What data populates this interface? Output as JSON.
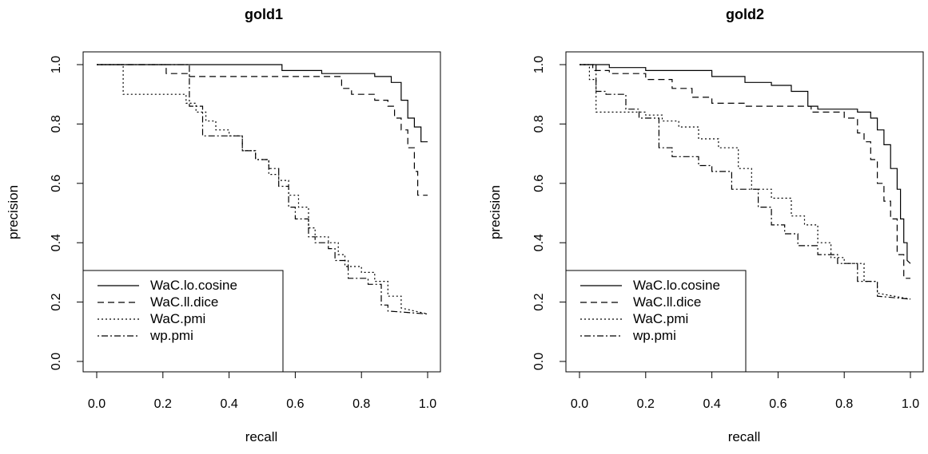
{
  "chart_data": [
    {
      "type": "line",
      "title": "gold1",
      "xlabel": "recall",
      "ylabel": "precision",
      "xlim": [
        0,
        1
      ],
      "ylim": [
        0,
        1
      ],
      "xticks": [
        "0.0",
        "0.2",
        "0.4",
        "0.6",
        "0.8",
        "1.0"
      ],
      "yticks": [
        "0.0",
        "0.2",
        "0.4",
        "0.6",
        "0.8",
        "1.0"
      ],
      "grid": false,
      "legend_position": "bottom-left",
      "series": [
        {
          "name": "WaC.lo.cosine",
          "dash": "solid",
          "x": [
            0,
            0.56,
            0.56,
            0.68,
            0.68,
            0.84,
            0.84,
            0.89,
            0.89,
            0.92,
            0.92,
            0.94,
            0.94,
            0.96,
            0.96,
            0.98,
            0.98,
            1.0
          ],
          "y": [
            1.0,
            1.0,
            0.98,
            0.98,
            0.97,
            0.97,
            0.96,
            0.96,
            0.94,
            0.94,
            0.88,
            0.88,
            0.82,
            0.82,
            0.79,
            0.79,
            0.74,
            0.74
          ]
        },
        {
          "name": "WaC.ll.dice",
          "dash": "dashed",
          "x": [
            0,
            0.21,
            0.21,
            0.28,
            0.28,
            0.74,
            0.74,
            0.77,
            0.77,
            0.84,
            0.84,
            0.88,
            0.88,
            0.9,
            0.9,
            0.92,
            0.92,
            0.94,
            0.94,
            0.96,
            0.96,
            0.97,
            0.97,
            0.98,
            0.98,
            1.0
          ],
          "y": [
            1.0,
            1.0,
            0.97,
            0.97,
            0.96,
            0.96,
            0.92,
            0.92,
            0.9,
            0.9,
            0.88,
            0.88,
            0.86,
            0.86,
            0.82,
            0.82,
            0.78,
            0.78,
            0.72,
            0.72,
            0.64,
            0.64,
            0.56,
            0.56,
            0.56,
            0.56
          ]
        },
        {
          "name": "WaC.pmi",
          "dash": "dotted",
          "x": [
            0,
            0.08,
            0.08,
            0.27,
            0.27,
            0.3,
            0.3,
            0.33,
            0.33,
            0.36,
            0.36,
            0.4,
            0.4,
            0.44,
            0.44,
            0.48,
            0.48,
            0.52,
            0.52,
            0.55,
            0.55,
            0.58,
            0.58,
            0.61,
            0.61,
            0.64,
            0.64,
            0.66,
            0.66,
            0.7,
            0.7,
            0.73,
            0.73,
            0.75,
            0.75,
            0.8,
            0.8,
            0.84,
            0.84,
            0.88,
            0.88,
            0.92,
            0.92,
            1.0
          ],
          "y": [
            1.0,
            1.0,
            0.9,
            0.9,
            0.87,
            0.87,
            0.84,
            0.84,
            0.81,
            0.81,
            0.78,
            0.78,
            0.76,
            0.76,
            0.71,
            0.71,
            0.68,
            0.68,
            0.63,
            0.63,
            0.61,
            0.61,
            0.56,
            0.56,
            0.52,
            0.52,
            0.45,
            0.45,
            0.42,
            0.42,
            0.4,
            0.4,
            0.36,
            0.36,
            0.32,
            0.32,
            0.3,
            0.3,
            0.27,
            0.27,
            0.22,
            0.22,
            0.18,
            0.16
          ]
        },
        {
          "name": "wp.pmi",
          "dash": "dotdash",
          "x": [
            0,
            0.28,
            0.28,
            0.32,
            0.32,
            0.44,
            0.44,
            0.48,
            0.48,
            0.52,
            0.52,
            0.55,
            0.55,
            0.58,
            0.58,
            0.6,
            0.6,
            0.64,
            0.64,
            0.66,
            0.66,
            0.7,
            0.7,
            0.72,
            0.72,
            0.76,
            0.76,
            0.82,
            0.82,
            0.86,
            0.86,
            0.88,
            0.88,
            1.0
          ],
          "y": [
            1.0,
            1.0,
            0.86,
            0.86,
            0.76,
            0.76,
            0.71,
            0.71,
            0.68,
            0.68,
            0.65,
            0.65,
            0.59,
            0.59,
            0.52,
            0.52,
            0.48,
            0.48,
            0.42,
            0.42,
            0.4,
            0.4,
            0.38,
            0.38,
            0.34,
            0.34,
            0.28,
            0.28,
            0.26,
            0.26,
            0.19,
            0.19,
            0.17,
            0.16
          ]
        }
      ]
    },
    {
      "type": "line",
      "title": "gold2",
      "xlabel": "recall",
      "ylabel": "precision",
      "xlim": [
        0,
        1
      ],
      "ylim": [
        0,
        1
      ],
      "xticks": [
        "0.0",
        "0.2",
        "0.4",
        "0.6",
        "0.8",
        "1.0"
      ],
      "yticks": [
        "0.0",
        "0.2",
        "0.4",
        "0.6",
        "0.8",
        "1.0"
      ],
      "grid": false,
      "legend_position": "bottom-left",
      "series": [
        {
          "name": "WaC.lo.cosine",
          "dash": "solid",
          "x": [
            0,
            0.09,
            0.09,
            0.2,
            0.2,
            0.4,
            0.4,
            0.5,
            0.5,
            0.58,
            0.58,
            0.64,
            0.64,
            0.69,
            0.69,
            0.72,
            0.72,
            0.84,
            0.84,
            0.88,
            0.88,
            0.9,
            0.9,
            0.92,
            0.92,
            0.94,
            0.94,
            0.96,
            0.96,
            0.97,
            0.97,
            0.98,
            0.98,
            0.99,
            0.99,
            1.0
          ],
          "y": [
            1.0,
            1.0,
            0.99,
            0.99,
            0.98,
            0.98,
            0.96,
            0.96,
            0.94,
            0.94,
            0.93,
            0.93,
            0.91,
            0.91,
            0.86,
            0.86,
            0.85,
            0.85,
            0.84,
            0.84,
            0.82,
            0.82,
            0.78,
            0.78,
            0.73,
            0.73,
            0.65,
            0.65,
            0.58,
            0.58,
            0.48,
            0.48,
            0.4,
            0.4,
            0.34,
            0.33
          ]
        },
        {
          "name": "WaC.ll.dice",
          "dash": "dashed",
          "x": [
            0,
            0.04,
            0.04,
            0.09,
            0.09,
            0.2,
            0.2,
            0.28,
            0.28,
            0.34,
            0.34,
            0.4,
            0.4,
            0.5,
            0.5,
            0.7,
            0.7,
            0.8,
            0.8,
            0.84,
            0.84,
            0.86,
            0.86,
            0.88,
            0.88,
            0.9,
            0.9,
            0.92,
            0.92,
            0.94,
            0.94,
            0.96,
            0.96,
            0.98,
            0.98,
            1.0
          ],
          "y": [
            1.0,
            1.0,
            0.98,
            0.98,
            0.97,
            0.97,
            0.95,
            0.95,
            0.92,
            0.92,
            0.89,
            0.89,
            0.87,
            0.87,
            0.86,
            0.86,
            0.84,
            0.84,
            0.82,
            0.82,
            0.77,
            0.77,
            0.74,
            0.74,
            0.68,
            0.68,
            0.6,
            0.6,
            0.54,
            0.54,
            0.48,
            0.48,
            0.36,
            0.36,
            0.28,
            0.28
          ]
        },
        {
          "name": "WaC.pmi",
          "dash": "dotted",
          "x": [
            0,
            0.03,
            0.03,
            0.05,
            0.05,
            0.2,
            0.2,
            0.25,
            0.25,
            0.3,
            0.3,
            0.36,
            0.36,
            0.42,
            0.42,
            0.48,
            0.48,
            0.52,
            0.52,
            0.58,
            0.58,
            0.64,
            0.64,
            0.68,
            0.68,
            0.72,
            0.72,
            0.76,
            0.76,
            0.8,
            0.8,
            0.86,
            0.86,
            0.9,
            0.9,
            1.0
          ],
          "y": [
            1.0,
            1.0,
            0.95,
            0.95,
            0.84,
            0.84,
            0.83,
            0.83,
            0.81,
            0.81,
            0.79,
            0.79,
            0.75,
            0.75,
            0.72,
            0.72,
            0.65,
            0.65,
            0.58,
            0.58,
            0.55,
            0.55,
            0.49,
            0.49,
            0.46,
            0.46,
            0.4,
            0.4,
            0.35,
            0.35,
            0.33,
            0.33,
            0.27,
            0.27,
            0.23,
            0.21
          ]
        },
        {
          "name": "wp.pmi",
          "dash": "dotdash",
          "x": [
            0,
            0.05,
            0.05,
            0.08,
            0.08,
            0.14,
            0.14,
            0.18,
            0.18,
            0.24,
            0.24,
            0.28,
            0.28,
            0.36,
            0.36,
            0.4,
            0.4,
            0.46,
            0.46,
            0.54,
            0.54,
            0.58,
            0.58,
            0.62,
            0.62,
            0.66,
            0.66,
            0.72,
            0.72,
            0.78,
            0.78,
            0.84,
            0.84,
            0.9,
            0.9,
            1.0
          ],
          "y": [
            1.0,
            1.0,
            0.91,
            0.91,
            0.9,
            0.9,
            0.85,
            0.85,
            0.82,
            0.82,
            0.72,
            0.72,
            0.69,
            0.69,
            0.66,
            0.66,
            0.64,
            0.64,
            0.58,
            0.58,
            0.52,
            0.52,
            0.46,
            0.46,
            0.43,
            0.43,
            0.39,
            0.39,
            0.36,
            0.36,
            0.33,
            0.33,
            0.27,
            0.27,
            0.22,
            0.21
          ]
        }
      ]
    }
  ]
}
